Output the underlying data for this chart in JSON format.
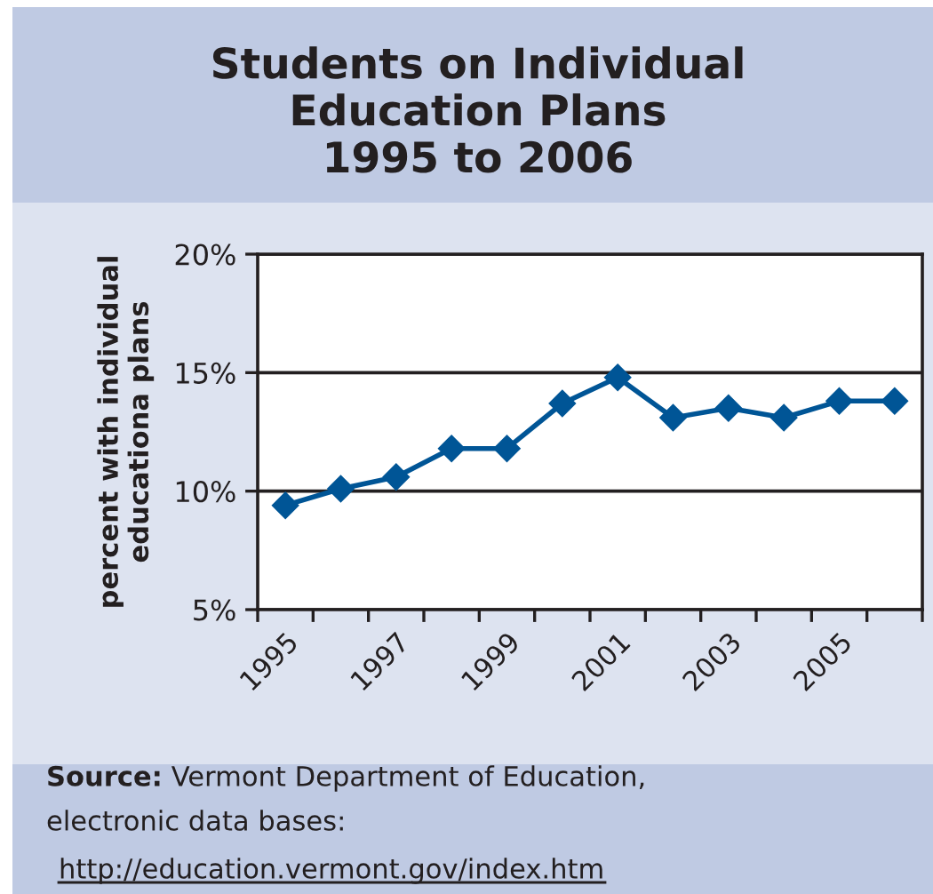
{
  "chart_data": {
    "type": "line",
    "title": "Students on Individual\nEducation Plans\n1995 to 2006",
    "ylabel": "percent with individual\neducationa plans",
    "annotations": [
      "Source:",
      "Vermont Department of Education,",
      "electronic data bases:",
      "http://education.vermont.gov/index.htm"
    ],
    "categories": [
      "1995",
      null,
      "1997",
      null,
      "1999",
      null,
      "2001",
      null,
      "2003",
      null,
      "2005",
      null
    ],
    "values": [
      9.4,
      10.1,
      10.6,
      11.8,
      11.8,
      13.7,
      14.8,
      13.1,
      13.5,
      13.1,
      13.8,
      13.8
    ],
    "color": "#005596",
    "marker": "diamond",
    "line_style": "solid",
    "ylim": [
      5,
      20
    ],
    "yticks": [
      {
        "value": 5,
        "label": "5%"
      },
      {
        "value": 10,
        "label": "10%"
      },
      {
        "value": 15,
        "label": "15%"
      },
      {
        "value": 20,
        "label": "20%"
      }
    ],
    "grid": "y",
    "legend": false
  }
}
